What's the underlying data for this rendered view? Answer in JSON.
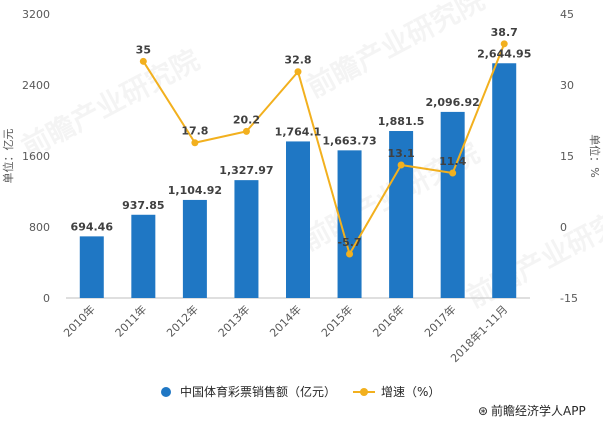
{
  "chart_data": {
    "type": "bar+line",
    "categories": [
      "2010年",
      "2011年",
      "2012年",
      "2013年",
      "2014年",
      "2015年",
      "2016年",
      "2017年",
      "2018年1-11月"
    ],
    "series": [
      {
        "name": "中国体育彩票销售额（亿元）",
        "type": "bar",
        "axis": "left",
        "color": "#1f77c4",
        "values": [
          694.46,
          937.85,
          1104.92,
          1327.97,
          1764.1,
          1663.73,
          1881.5,
          2096.92,
          2644.95
        ],
        "labels": [
          "694.46",
          "937.85",
          "1,104.92",
          "1,327.97",
          "1,764.1",
          "1,663.73",
          "1,881.5",
          "2,096.92",
          "2,644.95"
        ]
      },
      {
        "name": "增速（%）",
        "type": "line",
        "axis": "right",
        "color": "#f2b01e",
        "values": [
          null,
          35,
          17.8,
          20.2,
          32.8,
          -5.7,
          13.1,
          11.4,
          38.7
        ],
        "labels": [
          "",
          "35",
          "17.8",
          "20.2",
          "32.8",
          "-5.7",
          "13.1",
          "11.4",
          "38.7"
        ]
      }
    ],
    "y_left": {
      "label": "单位：亿元",
      "ylim": [
        0,
        3200
      ],
      "ticks": [
        "0",
        "800",
        "1600",
        "2400",
        "3200"
      ]
    },
    "y_right": {
      "label": "单位：%",
      "ylim": [
        -15,
        45
      ],
      "ticks": [
        "-15",
        "0",
        "15",
        "30",
        "45"
      ]
    },
    "legend_position": "bottom",
    "grid": false
  },
  "watermark": "前瞻产业研究院",
  "credit": "前瞻经济学人APP"
}
